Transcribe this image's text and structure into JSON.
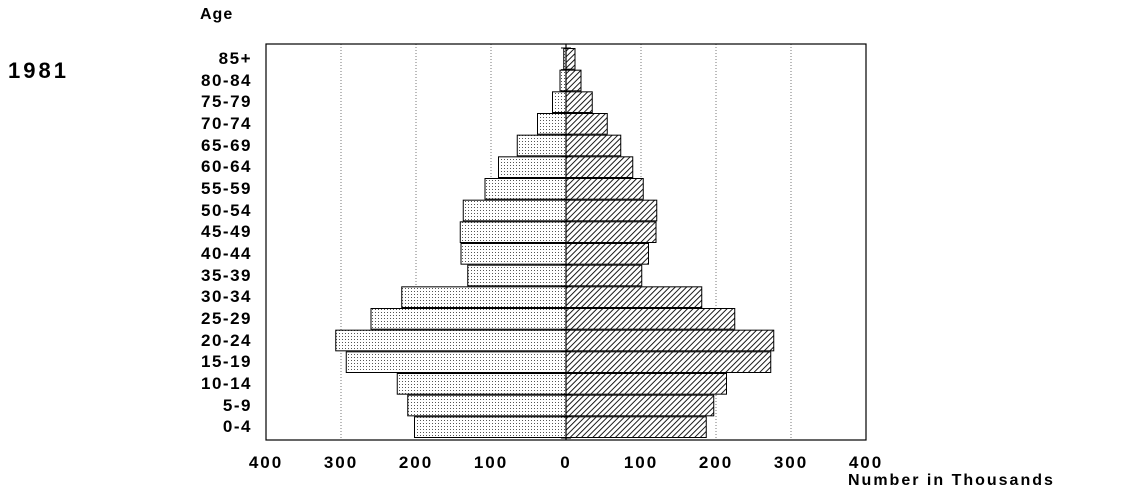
{
  "header": {
    "year": "1981"
  },
  "chart_data": {
    "type": "bar",
    "orientation": "horizontal",
    "subtype": "population-pyramid",
    "ylabel": "Age",
    "xlabel": "Number in Thousands",
    "categories": [
      "85+",
      "80-84",
      "75-79",
      "70-74",
      "65-69",
      "60-64",
      "55-59",
      "50-54",
      "45-49",
      "40-44",
      "35-39",
      "30-34",
      "25-29",
      "20-24",
      "15-19",
      "10-14",
      "5-9",
      "0-4"
    ],
    "series": [
      {
        "side": "left",
        "pattern": "dotted",
        "values": [
          3,
          8,
          18,
          38,
          65,
          90,
          108,
          137,
          141,
          140,
          131,
          219,
          260,
          307,
          293,
          225,
          211,
          202
        ]
      },
      {
        "side": "right",
        "pattern": "hatched",
        "values": [
          12,
          20,
          35,
          55,
          73,
          89,
          103,
          121,
          120,
          110,
          101,
          181,
          225,
          277,
          273,
          214,
          197,
          187
        ]
      }
    ],
    "xlim": [
      -400,
      400
    ],
    "xticks": [
      -400,
      -300,
      -200,
      -100,
      0,
      100,
      200,
      300,
      400
    ],
    "xtick_labels": [
      "400",
      "300",
      "200",
      "100",
      "0",
      "100",
      "200",
      "300",
      "400"
    ],
    "grid": true,
    "legend": "none"
  }
}
